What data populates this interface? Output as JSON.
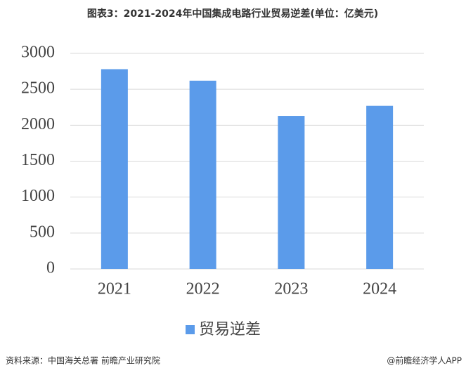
{
  "chart_data": {
    "type": "bar",
    "title": "图表3：2021-2024年中国集成电路行业贸易逆差(单位：亿美元)",
    "categories": [
      "2021",
      "2022",
      "2023",
      "2024"
    ],
    "series": [
      {
        "name": "贸易逆差",
        "color": "#5b9bea",
        "values": [
          2780,
          2620,
          2130,
          2270
        ]
      }
    ],
    "ylim": [
      0,
      3000
    ],
    "yticks": [
      0,
      500,
      1000,
      1500,
      2000,
      2500,
      3000
    ],
    "grid": true,
    "legend": "bottom"
  },
  "footer": {
    "source": "资料来源：中国海关总署 前瞻产业研究院",
    "brand": "@前瞻经济学人APP"
  }
}
